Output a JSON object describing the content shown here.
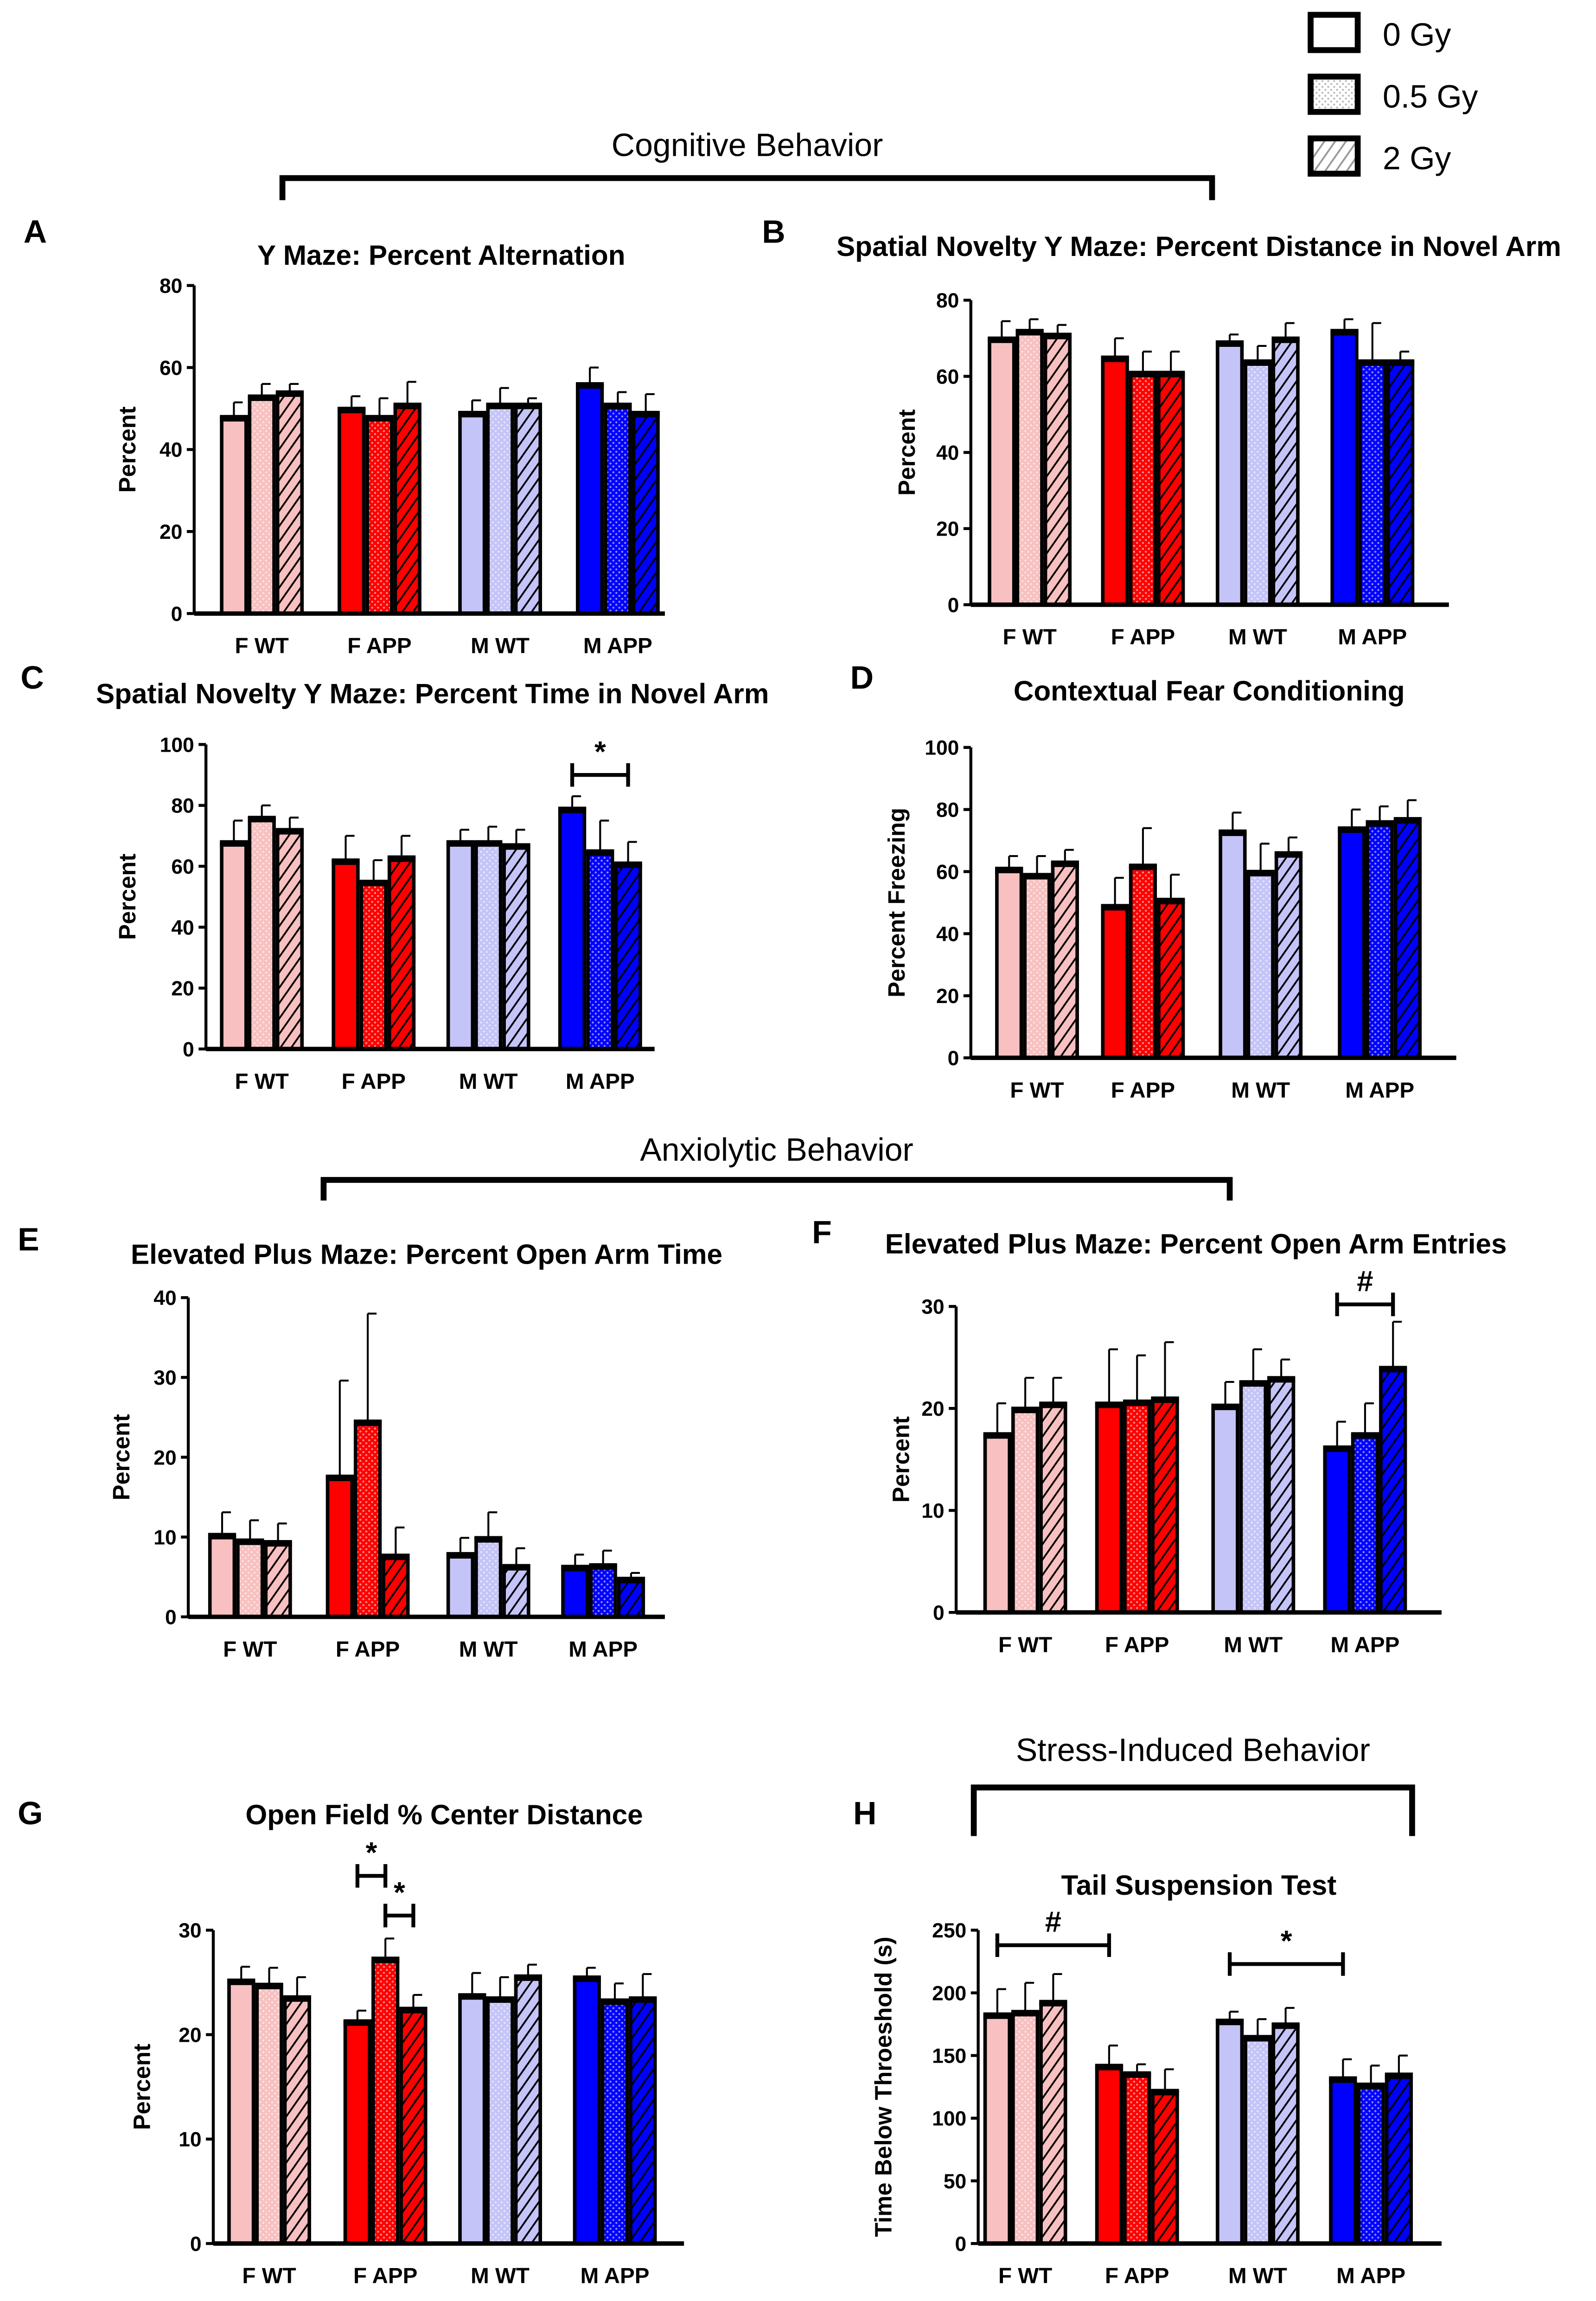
{
  "legend": {
    "items": [
      "0 Gy",
      "0.5 Gy",
      "2 Gy"
    ],
    "patterns": [
      "solid",
      "dotted",
      "hatched"
    ]
  },
  "sections": [
    "Cognitive Behavior",
    "Anxiolytic Behavior",
    "Stress-Induced Behavior"
  ],
  "colors": {
    "F WT": "#f8c0c0",
    "F APP": "#ff0000",
    "M WT": "#c4c4f8",
    "M APP": "#0000ff"
  },
  "chart_data": [
    {
      "panel": "A",
      "type": "bar",
      "title": "Y Maze: Percent Alternation",
      "ylabel": "Percent",
      "ylim": [
        0,
        80
      ],
      "yticks": [
        0,
        20,
        40,
        60,
        80
      ],
      "categories": [
        "F WT",
        "F APP",
        "M WT",
        "M APP"
      ],
      "series": [
        {
          "name": "0 Gy",
          "values": [
            48,
            50,
            49,
            56
          ],
          "errors": [
            3.5,
            3,
            3,
            4
          ]
        },
        {
          "name": "0.5 Gy",
          "values": [
            53,
            48,
            51,
            51
          ],
          "errors": [
            3,
            4.5,
            4,
            3
          ]
        },
        {
          "name": "2 Gy",
          "values": [
            54,
            51,
            51,
            49
          ],
          "errors": [
            2,
            5.5,
            1.5,
            4.5
          ]
        }
      ],
      "annotations": []
    },
    {
      "panel": "B",
      "type": "bar",
      "title": "Spatial Novelty Y Maze: Percent Distance in Novel Arm",
      "ylabel": "Percent",
      "ylim": [
        0,
        80
      ],
      "yticks": [
        0,
        20,
        40,
        60,
        80
      ],
      "categories": [
        "F WT",
        "F APP",
        "M WT",
        "M APP"
      ],
      "series": [
        {
          "name": "0 Gy",
          "values": [
            70,
            65,
            69,
            72
          ],
          "errors": [
            4.5,
            5,
            2,
            3
          ]
        },
        {
          "name": "0.5 Gy",
          "values": [
            72,
            61,
            64,
            64
          ],
          "errors": [
            3,
            5.5,
            4,
            10
          ]
        },
        {
          "name": "2 Gy",
          "values": [
            71,
            61,
            70,
            64
          ],
          "errors": [
            2.5,
            5.5,
            4,
            2.5
          ]
        }
      ],
      "annotations": []
    },
    {
      "panel": "C",
      "type": "bar",
      "title": "Spatial Novelty Y Maze: Percent Time in Novel Arm",
      "ylabel": "Percent",
      "ylim": [
        0,
        100
      ],
      "yticks": [
        0,
        20,
        40,
        60,
        80,
        100
      ],
      "categories": [
        "F WT",
        "F APP",
        "M WT",
        "M APP"
      ],
      "series": [
        {
          "name": "0 Gy",
          "values": [
            68,
            62,
            68,
            79
          ],
          "errors": [
            7,
            8,
            4,
            4
          ]
        },
        {
          "name": "0.5 Gy",
          "values": [
            76,
            55,
            68,
            65
          ],
          "errors": [
            4,
            7,
            5,
            10
          ]
        },
        {
          "name": "2 Gy",
          "values": [
            72,
            63,
            67,
            61
          ],
          "errors": [
            4,
            7,
            5,
            7
          ]
        }
      ],
      "annotations": [
        {
          "label": "*",
          "group": 3,
          "from": 0,
          "to": 2,
          "level": 90
        }
      ]
    },
    {
      "panel": "D",
      "type": "bar",
      "title": "Contextual Fear Conditioning",
      "ylabel": "Percent Freezing",
      "ylim": [
        0,
        100
      ],
      "yticks": [
        0,
        20,
        40,
        60,
        80,
        100
      ],
      "categories": [
        "F WT",
        "F APP",
        "M WT",
        "M APP"
      ],
      "series": [
        {
          "name": "0 Gy",
          "values": [
            61,
            49,
            73,
            74
          ],
          "errors": [
            4,
            9,
            6,
            6
          ]
        },
        {
          "name": "0.5 Gy",
          "values": [
            59,
            62,
            60,
            76
          ],
          "errors": [
            6,
            12,
            9,
            5
          ]
        },
        {
          "name": "2 Gy",
          "values": [
            63,
            51,
            66,
            77
          ],
          "errors": [
            4,
            8,
            5,
            6
          ]
        }
      ],
      "annotations": []
    },
    {
      "panel": "E",
      "type": "bar",
      "title": "Elevated Plus Maze: Percent Open Arm Time",
      "ylabel": "Percent",
      "ylim": [
        0,
        40
      ],
      "yticks": [
        0,
        10,
        20,
        30,
        40
      ],
      "categories": [
        "F WT",
        "F APP",
        "M WT",
        "M APP"
      ],
      "series": [
        {
          "name": "0 Gy",
          "values": [
            10.3,
            17.6,
            7.9,
            6.3
          ],
          "errors": [
            2.8,
            12,
            2,
            1.5
          ]
        },
        {
          "name": "0.5 Gy",
          "values": [
            9.6,
            24.5,
            9.9,
            6.5
          ],
          "errors": [
            2.5,
            13.5,
            3.2,
            1.8
          ]
        },
        {
          "name": "2 Gy",
          "values": [
            9.4,
            7.7,
            6.4,
            4.8
          ],
          "errors": [
            2.3,
            3.5,
            2.2,
            0.7
          ]
        }
      ],
      "annotations": []
    },
    {
      "panel": "F",
      "type": "bar",
      "title": "Elevated Plus Maze: Percent Open Arm Entries",
      "ylabel": "Percent",
      "ylim": [
        0,
        30
      ],
      "yticks": [
        0,
        10,
        20,
        30
      ],
      "categories": [
        "F WT",
        "F APP",
        "M WT",
        "M APP"
      ],
      "series": [
        {
          "name": "0 Gy",
          "values": [
            17.5,
            20.5,
            20.3,
            16.2
          ],
          "errors": [
            3,
            5.3,
            2.3,
            2.5
          ]
        },
        {
          "name": "0.5 Gy",
          "values": [
            20,
            20.7,
            22.6,
            17.5
          ],
          "errors": [
            3,
            4.5,
            3.2,
            3
          ]
        },
        {
          "name": "2 Gy",
          "values": [
            20.5,
            21,
            23,
            24
          ],
          "errors": [
            2.5,
            5.5,
            1.8,
            4.5
          ]
        }
      ],
      "annotations": [
        {
          "label": "#",
          "group": 3,
          "from": 0,
          "to": 2,
          "level": 30.2
        }
      ]
    },
    {
      "panel": "G",
      "type": "bar",
      "title": "Open Field % Center Distance",
      "ylabel": "Percent",
      "ylim": [
        0,
        30
      ],
      "yticks": [
        0,
        10,
        20,
        30
      ],
      "categories": [
        "F WT",
        "F APP",
        "M WT",
        "M APP"
      ],
      "series": [
        {
          "name": "0 Gy",
          "values": [
            25.2,
            21.3,
            23.8,
            25.5
          ],
          "errors": [
            1.3,
            1.0,
            2.1,
            0.9
          ]
        },
        {
          "name": "0.5 Gy",
          "values": [
            24.8,
            27.3,
            23.5,
            23.3
          ],
          "errors": [
            1.6,
            1.9,
            2.0,
            1.6
          ]
        },
        {
          "name": "2 Gy",
          "values": [
            23.6,
            22.5,
            25.6,
            23.5
          ],
          "errors": [
            1.9,
            1.3,
            1.1,
            2.3
          ]
        }
      ],
      "annotations": [
        {
          "label": "*",
          "group": 1,
          "from": 0,
          "to": 1,
          "level": 35.2
        },
        {
          "label": "*",
          "group": 1,
          "from": 1,
          "to": 2,
          "level": 31.4
        }
      ]
    },
    {
      "panel": "H",
      "type": "bar",
      "title": "Tail Suspension Test",
      "ylabel": "Time Below Throeshold (s)",
      "ylim": [
        0,
        250
      ],
      "yticks": [
        0,
        50,
        100,
        150,
        200,
        250
      ],
      "categories": [
        "F WT",
        "F APP",
        "M WT",
        "M APP"
      ],
      "series": [
        {
          "name": "0 Gy",
          "values": [
            183,
            142,
            178,
            132
          ],
          "errors": [
            20,
            16,
            7,
            15
          ]
        },
        {
          "name": "0.5 Gy",
          "values": [
            185,
            136,
            165,
            127
          ],
          "errors": [
            23,
            7,
            14,
            15
          ]
        },
        {
          "name": "2 Gy",
          "values": [
            193,
            122,
            175,
            135
          ],
          "errors": [
            22,
            17,
            13,
            15
          ]
        }
      ],
      "annotations": [
        {
          "label": "#",
          "group": 0,
          "from": 0,
          "toGroup": 1,
          "to": 0,
          "level": 238
        },
        {
          "label": "*",
          "group": 2,
          "from": 0,
          "toGroup": 3,
          "to": 0,
          "level": 223
        }
      ]
    }
  ]
}
